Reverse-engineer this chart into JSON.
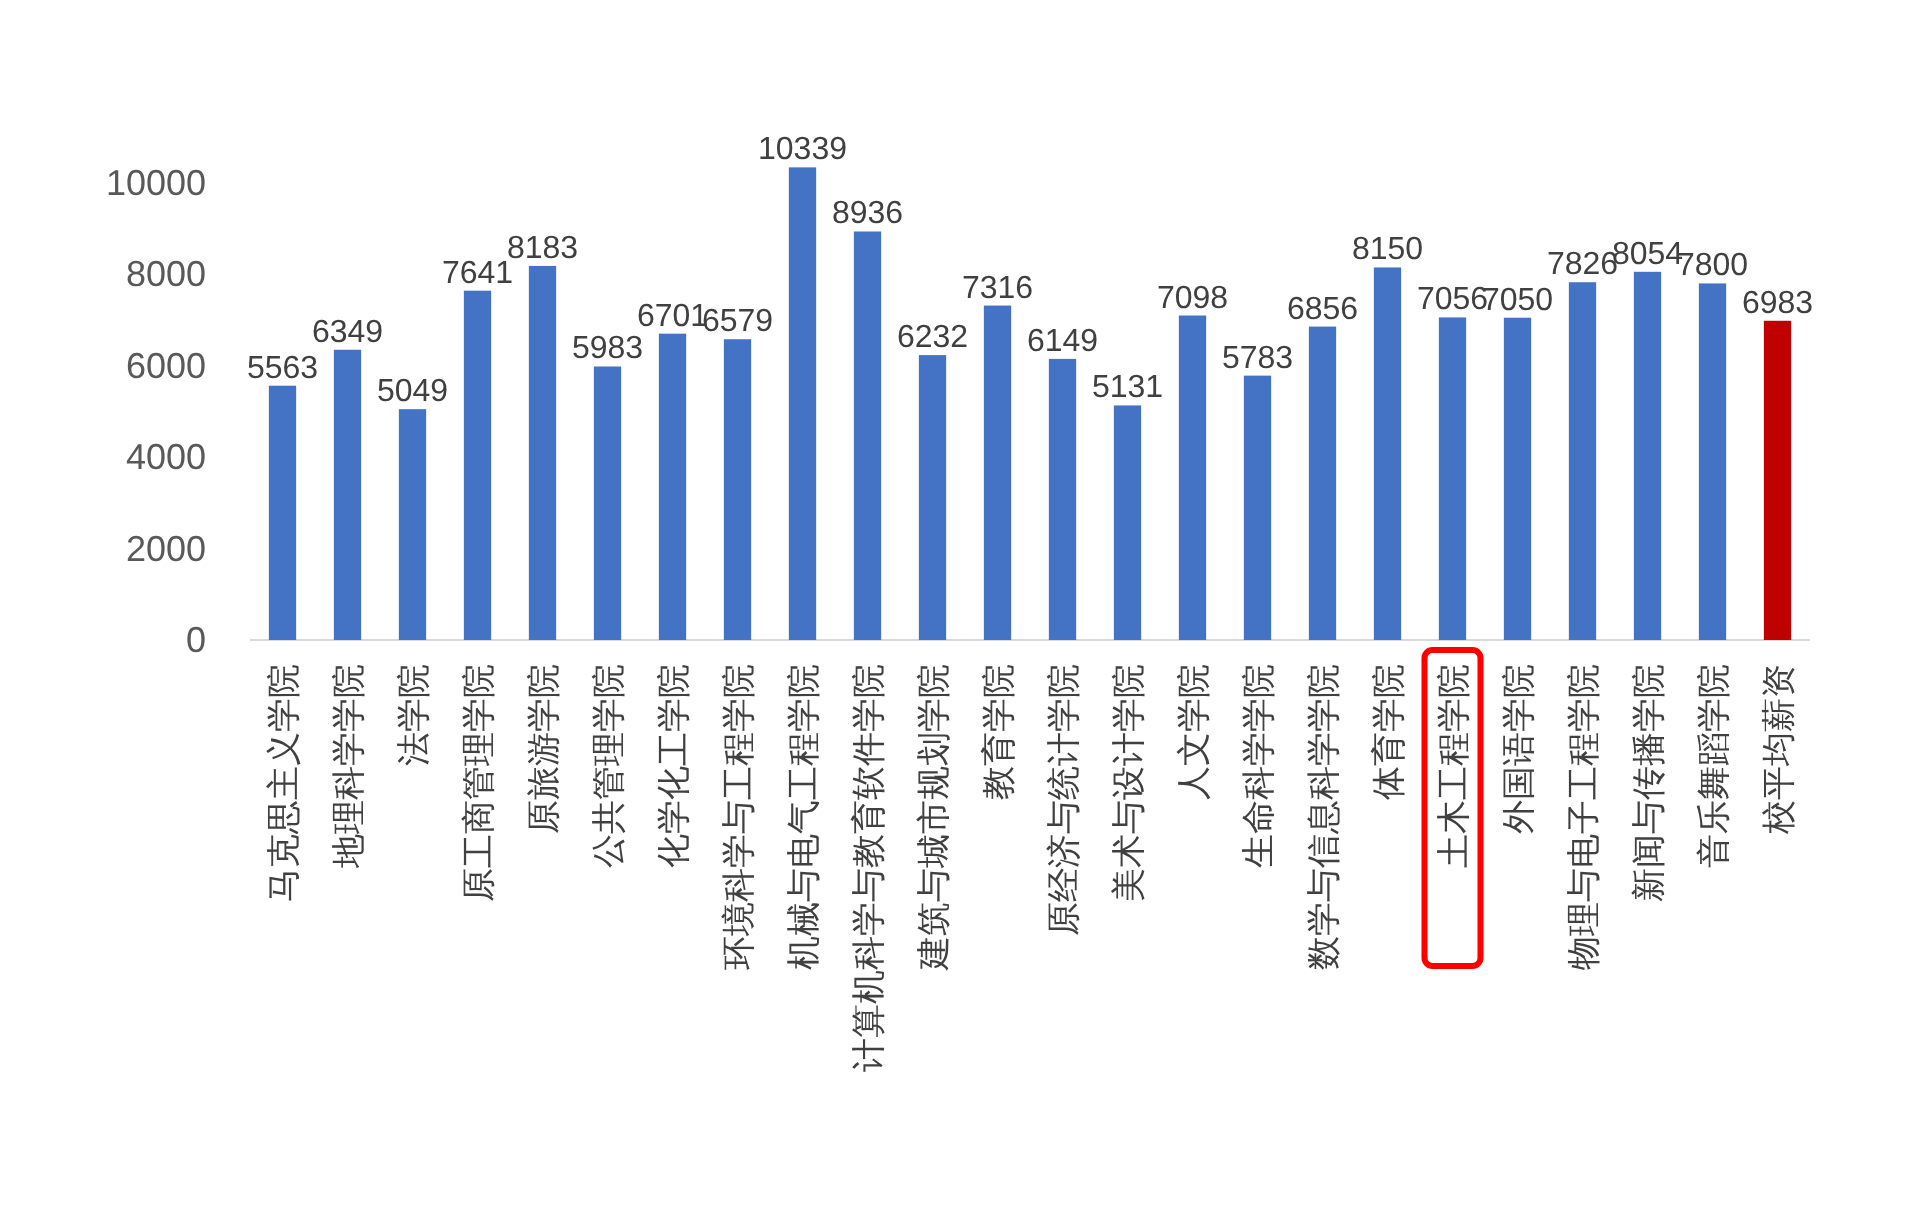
{
  "chart_data": {
    "type": "bar",
    "categories": [
      "马克思主义学院",
      "地理科学学院",
      "法学院",
      "原工商管理学院",
      "原旅游学院",
      "公共管理学院",
      "化学化工学院",
      "环境科学与工程学院",
      "机械与电气工程学院",
      "计算机科学与教育软件学院",
      "建筑与城市规划学院",
      "教育学院",
      "原经济与统计学院",
      "美术与设计学院",
      "人文学院",
      "生命科学学院",
      "数学与信息科学学院",
      "体育学院",
      "土木工程学院",
      "外国语学院",
      "物理与电子工程学院",
      "新闻与传播学院",
      "音乐舞蹈学院",
      "校平均薪资"
    ],
    "values": [
      5563,
      6349,
      5049,
      7641,
      8183,
      5983,
      6701,
      6579,
      10339,
      8936,
      6232,
      7316,
      6149,
      5131,
      7098,
      5783,
      6856,
      8150,
      7056,
      7050,
      7826,
      8054,
      7800,
      6983
    ],
    "colors": [
      "#4472c4",
      "#4472c4",
      "#4472c4",
      "#4472c4",
      "#4472c4",
      "#4472c4",
      "#4472c4",
      "#4472c4",
      "#4472c4",
      "#4472c4",
      "#4472c4",
      "#4472c4",
      "#4472c4",
      "#4472c4",
      "#4472c4",
      "#4472c4",
      "#4472c4",
      "#4472c4",
      "#4472c4",
      "#4472c4",
      "#4472c4",
      "#4472c4",
      "#4472c4",
      "#c00000"
    ],
    "ylim": [
      0,
      10500
    ],
    "yticks": [
      0,
      2000,
      4000,
      6000,
      8000,
      10000
    ],
    "data_labels": true
  }
}
